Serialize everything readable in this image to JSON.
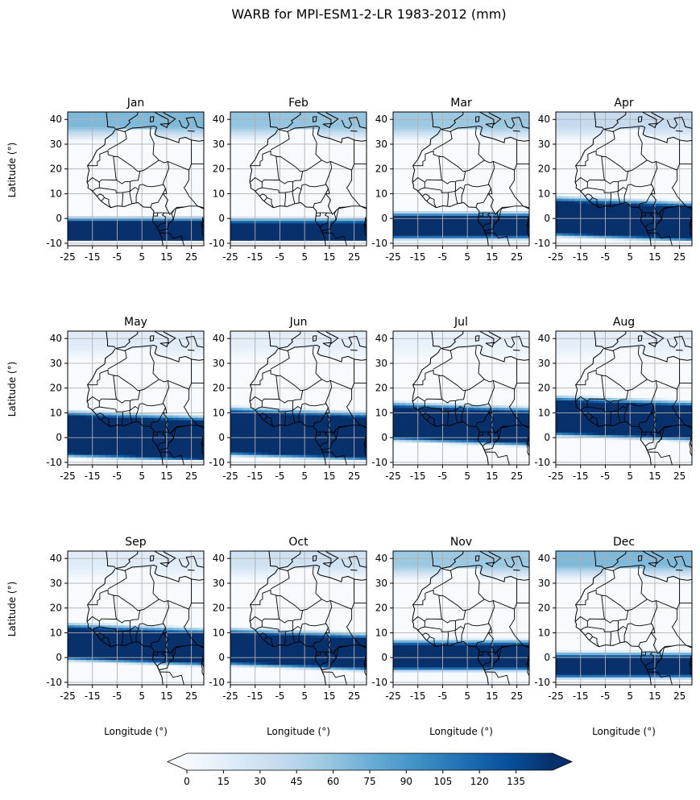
{
  "title": "WARB for MPI-ESM1-2-LR 1983-2012 (mm)",
  "chart_data": {
    "type": "heatmap",
    "title": "WARB for MPI-ESM1-2-LR 1983-2012 (mm)",
    "xlabel": "Longitude (°)",
    "ylabel": "Latitude (°)",
    "xlim": [
      -25,
      30
    ],
    "ylim": [
      -11,
      43
    ],
    "x_ticks": [
      "-25",
      "-15",
      "-5",
      "5",
      "15",
      "25"
    ],
    "x_tick_values": [
      -25,
      -15,
      -5,
      5,
      15,
      25
    ],
    "y_ticks": [
      "-10",
      "0",
      "10",
      "20",
      "30",
      "40"
    ],
    "y_tick_values": [
      -10,
      0,
      10,
      20,
      30,
      40
    ],
    "grid": true,
    "colormap": "Blues",
    "colorbar": {
      "ticks": [
        "0",
        "15",
        "30",
        "45",
        "60",
        "75",
        "90",
        "105",
        "120",
        "135"
      ],
      "tick_values": [
        0,
        15,
        30,
        45,
        60,
        75,
        90,
        105,
        120,
        135
      ],
      "range": [
        0,
        150
      ],
      "extend": "both",
      "orientation": "horizontal"
    },
    "panels": [
      {
        "month": "Jan",
        "band_lat_south": -8.5,
        "band_lat_north": -1.5,
        "north_intensity": 0.45
      },
      {
        "month": "Feb",
        "band_lat_south": -8.5,
        "band_lat_north": -2.0,
        "north_intensity": 0.4
      },
      {
        "month": "Mar",
        "band_lat_south": -7.0,
        "band_lat_north": 0.5,
        "north_intensity": 0.38
      },
      {
        "month": "Apr",
        "band_lat_south": -7.0,
        "band_lat_north": 5.5,
        "north_intensity": 0.25
      },
      {
        "month": "May",
        "band_lat_south": -7.5,
        "band_lat_north": 7.5,
        "north_intensity": 0.12
      },
      {
        "month": "Jun",
        "band_lat_south": -7.0,
        "band_lat_north": 9.0,
        "north_intensity": 0.1
      },
      {
        "month": "Jul",
        "band_lat_south": -1.0,
        "band_lat_north": 11.0,
        "north_intensity": 0.08
      },
      {
        "month": "Aug",
        "band_lat_south": 1.0,
        "band_lat_north": 13.5,
        "north_intensity": 0.1
      },
      {
        "month": "Sep",
        "band_lat_south": -1.0,
        "band_lat_north": 10.5,
        "north_intensity": 0.12
      },
      {
        "month": "Oct",
        "band_lat_south": -3.0,
        "band_lat_north": 8.5,
        "north_intensity": 0.2
      },
      {
        "month": "Nov",
        "band_lat_south": -4.0,
        "band_lat_north": 5.0,
        "north_intensity": 0.38
      },
      {
        "month": "Dec",
        "band_lat_south": -7.0,
        "band_lat_north": 0.0,
        "north_intensity": 0.45
      }
    ]
  },
  "colors": {
    "cmap_low": "#f7fbff",
    "cmap_mid": "#6baed6",
    "cmap_high": "#08306b",
    "grid": "#b0b0b0",
    "coast": "#000000"
  }
}
